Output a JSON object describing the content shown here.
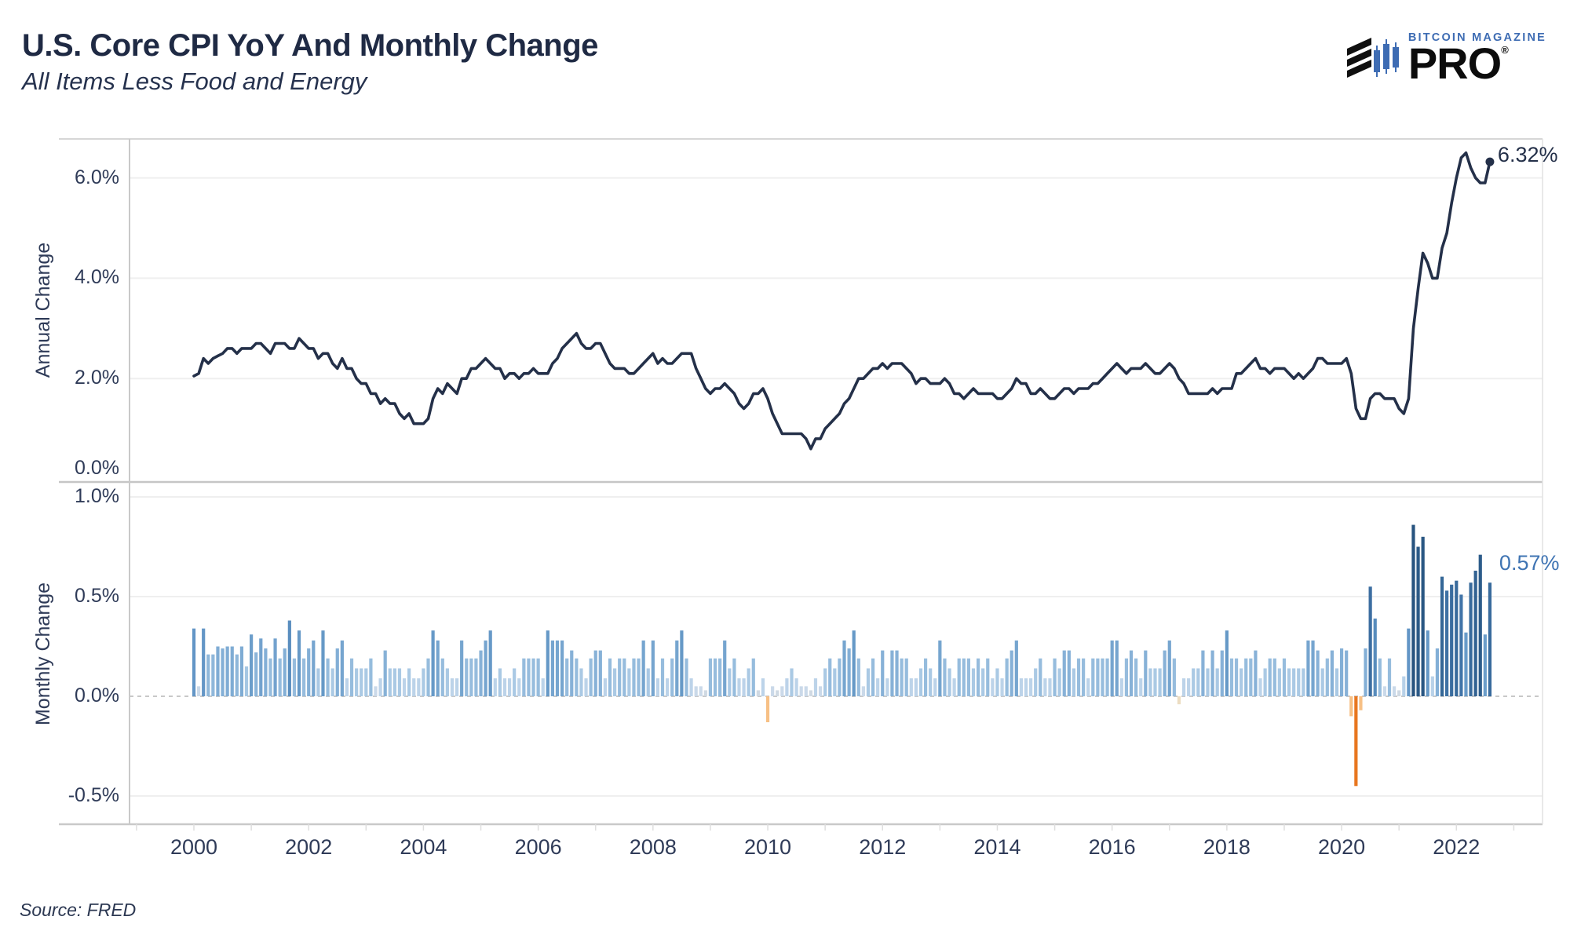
{
  "header": {
    "title": "U.S. Core CPI YoY And Monthly Change",
    "subtitle": "All Items Less Food and Energy"
  },
  "logo": {
    "brand": "BITCOIN MAGAZINE",
    "product": "PRO",
    "registered": "®",
    "brand_color": "#3e6cb3"
  },
  "footer": {
    "source": "Source: FRED"
  },
  "colors": {
    "line": "#243049",
    "title_text": "#1f2a44",
    "axis_text": "#2f3b58",
    "annotation_top": "#243049",
    "annotation_bottom": "#3f74b3",
    "grid": "#efefef",
    "axis_line": "#c9c9c9",
    "zero_dash": "#c8c8c8",
    "negative_strong": "#e8761f",
    "negative_light": "#f7c085",
    "negative_faint": "#ecddc2"
  },
  "x_axis": {
    "tick_labels": [
      "2000",
      "2002",
      "2004",
      "2006",
      "2008",
      "2010",
      "2012",
      "2014",
      "2016",
      "2018",
      "2020",
      "2022"
    ],
    "range_years": [
      1998.9,
      2023.5
    ]
  },
  "chart_data": [
    {
      "type": "line",
      "name": "core-cpi-yoy",
      "ylabel": "Annual Change",
      "yticks": [
        {
          "label": "6.0%",
          "value": 6
        },
        {
          "label": "4.0%",
          "value": 4
        },
        {
          "label": "2.0%",
          "value": 2
        },
        {
          "label": "0.0%",
          "value": 0
        }
      ],
      "ylim": [
        0,
        6.8
      ],
      "grid": true,
      "x_start": "2000-01",
      "x_end": "2022-08",
      "frequency": "monthly",
      "end_annotation": "6.32%",
      "values": [
        2.05,
        2.1,
        2.4,
        2.3,
        2.4,
        2.45,
        2.5,
        2.6,
        2.6,
        2.5,
        2.6,
        2.6,
        2.6,
        2.7,
        2.7,
        2.6,
        2.5,
        2.7,
        2.7,
        2.7,
        2.6,
        2.6,
        2.8,
        2.7,
        2.6,
        2.6,
        2.4,
        2.5,
        2.5,
        2.3,
        2.2,
        2.4,
        2.2,
        2.2,
        2.0,
        1.9,
        1.9,
        1.7,
        1.7,
        1.5,
        1.6,
        1.5,
        1.5,
        1.3,
        1.2,
        1.3,
        1.1,
        1.1,
        1.1,
        1.2,
        1.6,
        1.8,
        1.7,
        1.9,
        1.8,
        1.7,
        2.0,
        2.0,
        2.2,
        2.2,
        2.3,
        2.4,
        2.3,
        2.2,
        2.2,
        2.0,
        2.1,
        2.1,
        2.0,
        2.1,
        2.1,
        2.2,
        2.1,
        2.1,
        2.1,
        2.3,
        2.4,
        2.6,
        2.7,
        2.8,
        2.9,
        2.7,
        2.6,
        2.6,
        2.7,
        2.7,
        2.5,
        2.3,
        2.2,
        2.2,
        2.2,
        2.1,
        2.1,
        2.2,
        2.3,
        2.4,
        2.5,
        2.3,
        2.4,
        2.3,
        2.3,
        2.4,
        2.5,
        2.5,
        2.5,
        2.2,
        2.0,
        1.8,
        1.7,
        1.8,
        1.8,
        1.9,
        1.8,
        1.7,
        1.5,
        1.4,
        1.5,
        1.7,
        1.7,
        1.8,
        1.6,
        1.3,
        1.1,
        0.9,
        0.9,
        0.9,
        0.9,
        0.9,
        0.8,
        0.6,
        0.8,
        0.8,
        1.0,
        1.1,
        1.2,
        1.3,
        1.5,
        1.6,
        1.8,
        2.0,
        2.0,
        2.1,
        2.2,
        2.2,
        2.3,
        2.2,
        2.3,
        2.3,
        2.3,
        2.2,
        2.1,
        1.9,
        2.0,
        2.0,
        1.9,
        1.9,
        1.9,
        2.0,
        1.9,
        1.7,
        1.7,
        1.6,
        1.7,
        1.8,
        1.7,
        1.7,
        1.7,
        1.7,
        1.6,
        1.6,
        1.7,
        1.8,
        2.0,
        1.9,
        1.9,
        1.7,
        1.7,
        1.8,
        1.7,
        1.6,
        1.6,
        1.7,
        1.8,
        1.8,
        1.7,
        1.8,
        1.8,
        1.8,
        1.9,
        1.9,
        2.0,
        2.1,
        2.2,
        2.3,
        2.2,
        2.1,
        2.2,
        2.2,
        2.2,
        2.3,
        2.2,
        2.1,
        2.1,
        2.2,
        2.3,
        2.2,
        2.0,
        1.9,
        1.7,
        1.7,
        1.7,
        1.7,
        1.7,
        1.8,
        1.7,
        1.8,
        1.8,
        1.8,
        2.1,
        2.1,
        2.2,
        2.3,
        2.4,
        2.2,
        2.2,
        2.1,
        2.2,
        2.2,
        2.2,
        2.1,
        2.0,
        2.1,
        2.0,
        2.1,
        2.2,
        2.4,
        2.4,
        2.3,
        2.3,
        2.3,
        2.3,
        2.4,
        2.1,
        1.4,
        1.2,
        1.2,
        1.6,
        1.7,
        1.7,
        1.6,
        1.6,
        1.6,
        1.4,
        1.3,
        1.6,
        3.0,
        3.8,
        4.5,
        4.3,
        4.0,
        4.0,
        4.6,
        4.9,
        5.5,
        6.0,
        6.4,
        6.5,
        6.2,
        6.0,
        5.9,
        5.9,
        6.32
      ]
    },
    {
      "type": "bar",
      "name": "core-cpi-mom",
      "ylabel": "Monthly Change",
      "yticks": [
        {
          "label": "1.0%",
          "value": 1
        },
        {
          "label": "0.5%",
          "value": 0.5
        },
        {
          "label": "0.0%",
          "value": 0
        },
        {
          "label": "-0.5%",
          "value": -0.5
        }
      ],
      "ylim": [
        -0.64,
        1.07
      ],
      "grid": true,
      "zero_line": "dashed",
      "x_start": "2000-01",
      "x_end": "2022-08",
      "frequency": "monthly",
      "end_annotation": "0.57%",
      "values": [
        0.34,
        0.05,
        0.34,
        0.21,
        0.21,
        0.25,
        0.24,
        0.25,
        0.25,
        0.21,
        0.25,
        0.15,
        0.31,
        0.22,
        0.29,
        0.24,
        0.19,
        0.29,
        0.19,
        0.24,
        0.38,
        0.19,
        0.33,
        0.19,
        0.24,
        0.28,
        0.14,
        0.33,
        0.19,
        0.14,
        0.24,
        0.28,
        0.09,
        0.19,
        0.14,
        0.14,
        0.14,
        0.19,
        0.05,
        0.09,
        0.23,
        0.14,
        0.14,
        0.14,
        0.09,
        0.14,
        0.09,
        0.09,
        0.14,
        0.19,
        0.33,
        0.28,
        0.19,
        0.14,
        0.09,
        0.09,
        0.28,
        0.19,
        0.19,
        0.19,
        0.23,
        0.28,
        0.33,
        0.09,
        0.14,
        0.09,
        0.09,
        0.14,
        0.09,
        0.19,
        0.19,
        0.19,
        0.19,
        0.09,
        0.33,
        0.28,
        0.28,
        0.28,
        0.19,
        0.23,
        0.19,
        0.14,
        0.09,
        0.19,
        0.23,
        0.23,
        0.09,
        0.19,
        0.14,
        0.19,
        0.19,
        0.14,
        0.19,
        0.19,
        0.28,
        0.14,
        0.28,
        0.09,
        0.19,
        0.09,
        0.19,
        0.28,
        0.33,
        0.19,
        0.09,
        0.05,
        0.05,
        0.03,
        0.19,
        0.19,
        0.19,
        0.28,
        0.14,
        0.19,
        0.09,
        0.09,
        0.14,
        0.19,
        0.03,
        0.09,
        -0.13,
        0.05,
        0.03,
        0.05,
        0.09,
        0.14,
        0.09,
        0.05,
        0.05,
        0.03,
        0.09,
        0.05,
        0.14,
        0.19,
        0.14,
        0.19,
        0.28,
        0.24,
        0.33,
        0.19,
        0.05,
        0.14,
        0.19,
        0.09,
        0.23,
        0.09,
        0.23,
        0.23,
        0.19,
        0.19,
        0.09,
        0.09,
        0.14,
        0.19,
        0.14,
        0.09,
        0.28,
        0.19,
        0.14,
        0.09,
        0.19,
        0.19,
        0.19,
        0.14,
        0.19,
        0.14,
        0.19,
        0.09,
        0.14,
        0.09,
        0.19,
        0.23,
        0.28,
        0.09,
        0.09,
        0.09,
        0.14,
        0.19,
        0.09,
        0.09,
        0.19,
        0.14,
        0.23,
        0.23,
        0.14,
        0.19,
        0.19,
        0.09,
        0.19,
        0.19,
        0.19,
        0.19,
        0.28,
        0.28,
        0.09,
        0.19,
        0.23,
        0.19,
        0.09,
        0.23,
        0.14,
        0.14,
        0.14,
        0.23,
        0.28,
        0.19,
        -0.04,
        0.09,
        0.09,
        0.14,
        0.14,
        0.23,
        0.14,
        0.23,
        0.14,
        0.23,
        0.33,
        0.19,
        0.19,
        0.14,
        0.19,
        0.19,
        0.23,
        0.09,
        0.14,
        0.19,
        0.19,
        0.14,
        0.19,
        0.14,
        0.14,
        0.14,
        0.14,
        0.28,
        0.28,
        0.23,
        0.14,
        0.19,
        0.23,
        0.14,
        0.24,
        0.23,
        -0.1,
        -0.45,
        -0.07,
        0.24,
        0.55,
        0.39,
        0.19,
        0.05,
        0.19,
        0.05,
        0.03,
        0.1,
        0.34,
        0.86,
        0.75,
        0.8,
        0.33,
        0.1,
        0.24,
        0.6,
        0.53,
        0.56,
        0.58,
        0.51,
        0.32,
        0.57,
        0.63,
        0.71,
        0.31,
        0.57
      ]
    }
  ]
}
